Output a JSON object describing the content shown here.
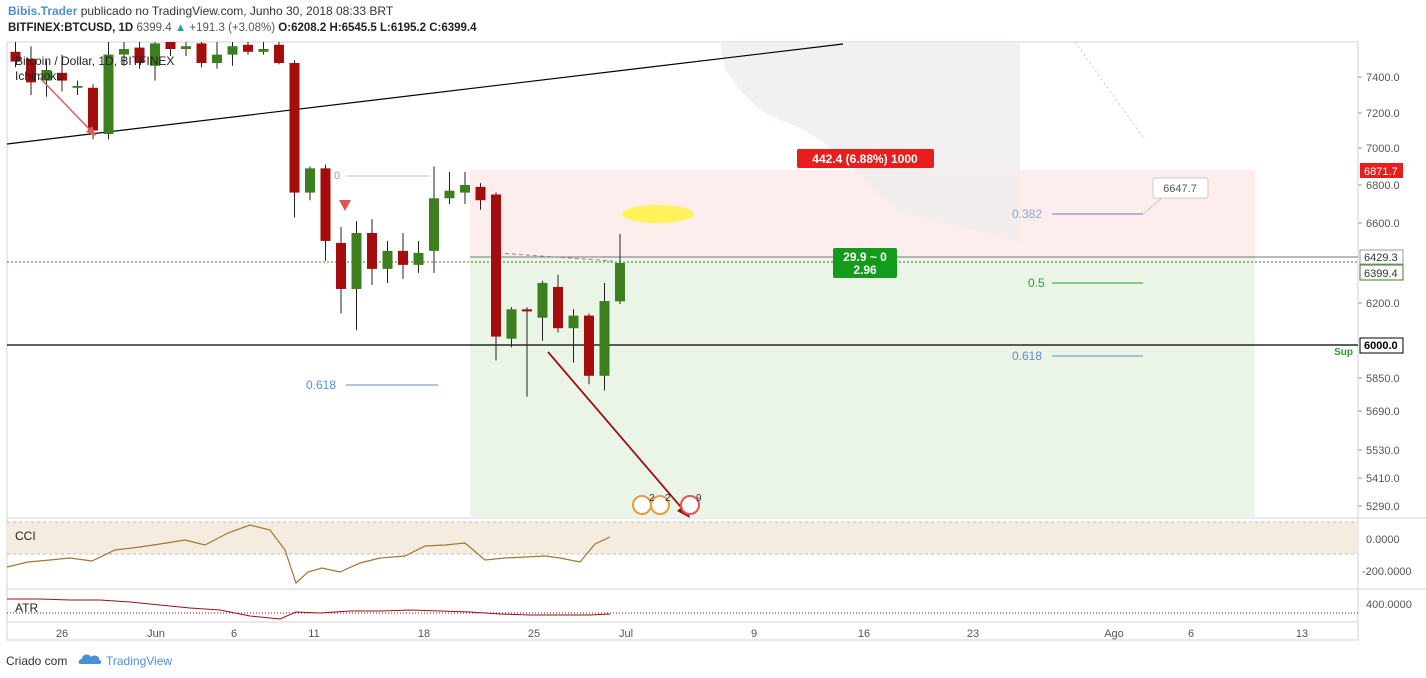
{
  "header": {
    "author": "Bibis.Trader",
    "published_text": "publicado no TradingView.com, Junho 30, 2018 08:33 BRT",
    "symbol": "BITFINEX:BTCUSD, 1D",
    "last": "6399.4",
    "change": "+191.3 (+3.08%)",
    "ohlc": {
      "o": "O:6208.2",
      "h": "H:6545.5",
      "l": "L:6195.2",
      "c": "C:6399.4"
    }
  },
  "legend": {
    "title": "Bitcoin / Dollar, 1D, BITFINEX",
    "indicator": "Ichimoku"
  },
  "chart_data": {
    "type": "candlestick",
    "y_axis_ticks": [
      5290,
      5410,
      5530,
      5690,
      5850,
      6000,
      6200,
      6429.3,
      6600,
      6800,
      7000,
      7200,
      7400
    ],
    "ylim": [
      5200,
      7650
    ],
    "x_ticks": [
      "26",
      "Jun",
      "6",
      "11",
      "18",
      "25",
      "Jul",
      "9",
      "16",
      "23",
      "Ago",
      "6",
      "13"
    ],
    "candles": [
      {
        "o": 7580,
        "h": 7650,
        "l": 7470,
        "c": 7510
      },
      {
        "o": 7530,
        "h": 7620,
        "l": 7300,
        "c": 7370
      },
      {
        "o": 7380,
        "h": 7520,
        "l": 7290,
        "c": 7450
      },
      {
        "o": 7430,
        "h": 7560,
        "l": 7320,
        "c": 7380
      },
      {
        "o": 7340,
        "h": 7380,
        "l": 7300,
        "c": 7350
      },
      {
        "o": 7340,
        "h": 7360,
        "l": 7050,
        "c": 7100
      },
      {
        "o": 7080,
        "h": 7650,
        "l": 7050,
        "c": 7560
      },
      {
        "o": 7560,
        "h": 7650,
        "l": 7480,
        "c": 7600
      },
      {
        "o": 7610,
        "h": 7650,
        "l": 7460,
        "c": 7500
      },
      {
        "o": 7480,
        "h": 7650,
        "l": 7380,
        "c": 7640
      },
      {
        "o": 7650,
        "h": 7650,
        "l": 7550,
        "c": 7600
      },
      {
        "o": 7600,
        "h": 7650,
        "l": 7550,
        "c": 7620
      },
      {
        "o": 7640,
        "h": 7650,
        "l": 7470,
        "c": 7500
      },
      {
        "o": 7500,
        "h": 7650,
        "l": 7460,
        "c": 7560
      },
      {
        "o": 7560,
        "h": 7650,
        "l": 7480,
        "c": 7620
      },
      {
        "o": 7630,
        "h": 7650,
        "l": 7560,
        "c": 7580
      },
      {
        "o": 7580,
        "h": 7650,
        "l": 7560,
        "c": 7600
      },
      {
        "o": 7630,
        "h": 7650,
        "l": 7490,
        "c": 7500
      },
      {
        "o": 7500,
        "h": 7520,
        "l": 6630,
        "c": 6760
      },
      {
        "o": 6760,
        "h": 6900,
        "l": 6720,
        "c": 6890
      },
      {
        "o": 6890,
        "h": 6910,
        "l": 6410,
        "c": 6510
      },
      {
        "o": 6500,
        "h": 6580,
        "l": 6150,
        "c": 6270
      },
      {
        "o": 6270,
        "h": 6610,
        "l": 6070,
        "c": 6550
      },
      {
        "o": 6550,
        "h": 6620,
        "l": 6290,
        "c": 6370
      },
      {
        "o": 6370,
        "h": 6510,
        "l": 6300,
        "c": 6460
      },
      {
        "o": 6460,
        "h": 6550,
        "l": 6320,
        "c": 6390
      },
      {
        "o": 6390,
        "h": 6510,
        "l": 6350,
        "c": 6450
      },
      {
        "o": 6460,
        "h": 6900,
        "l": 6350,
        "c": 6730
      },
      {
        "o": 6730,
        "h": 6870,
        "l": 6700,
        "c": 6770
      },
      {
        "o": 6760,
        "h": 6870,
        "l": 6700,
        "c": 6800
      },
      {
        "o": 6790,
        "h": 6810,
        "l": 6670,
        "c": 6720
      },
      {
        "o": 6750,
        "h": 6760,
        "l": 5930,
        "c": 6040
      },
      {
        "o": 6030,
        "h": 6180,
        "l": 5990,
        "c": 6170
      },
      {
        "o": 6170,
        "h": 6180,
        "l": 5760,
        "c": 6160
      },
      {
        "o": 6130,
        "h": 6310,
        "l": 6020,
        "c": 6300
      },
      {
        "o": 6280,
        "h": 6340,
        "l": 6060,
        "c": 6080
      },
      {
        "o": 6080,
        "h": 6170,
        "l": 5920,
        "c": 6140
      },
      {
        "o": 6140,
        "h": 6150,
        "l": 5820,
        "c": 5860
      },
      {
        "o": 5860,
        "h": 6300,
        "l": 5790,
        "c": 6210
      },
      {
        "o": 6208.2,
        "h": 6545.5,
        "l": 6195.2,
        "c": 6399.4
      }
    ],
    "price_labels": {
      "red": "6871.7",
      "grey": "6429.3",
      "green": "6399.4",
      "black": "6000.0"
    },
    "fib_labels": [
      "0.382",
      "0.5",
      "0.618",
      "0.618",
      "0"
    ],
    "fib_values": {
      "f382": 6647,
      "f5": 6304,
      "f618": 5943,
      "f618_left": 5880
    },
    "annotations": {
      "risk": "442.4 (6.88%) 1000",
      "reward_line1": "29.9 ~ 0",
      "reward_line2": "2.96",
      "callout": "6647.7",
      "sup": "Sup",
      "events_1": "2",
      "events_2": "2",
      "events_3": "9"
    },
    "levels": {
      "support": 6000,
      "entry": 6429.3,
      "stop": 6871.7,
      "target_bottom": 5200
    },
    "cci": {
      "label": "CCI",
      "ticks": [
        "0.0000",
        "-200.0000"
      ]
    },
    "atr": {
      "label": "ATR",
      "ticks": [
        "400.0000"
      ]
    },
    "colors": {
      "up": "#3d7f1e",
      "down": "#a30d0d",
      "bg_profit": "#eaf5e8",
      "bg_loss": "#fdeded",
      "axis_text": "#555555"
    }
  },
  "footer": {
    "created": "Criado com",
    "brand": "TradingView"
  }
}
